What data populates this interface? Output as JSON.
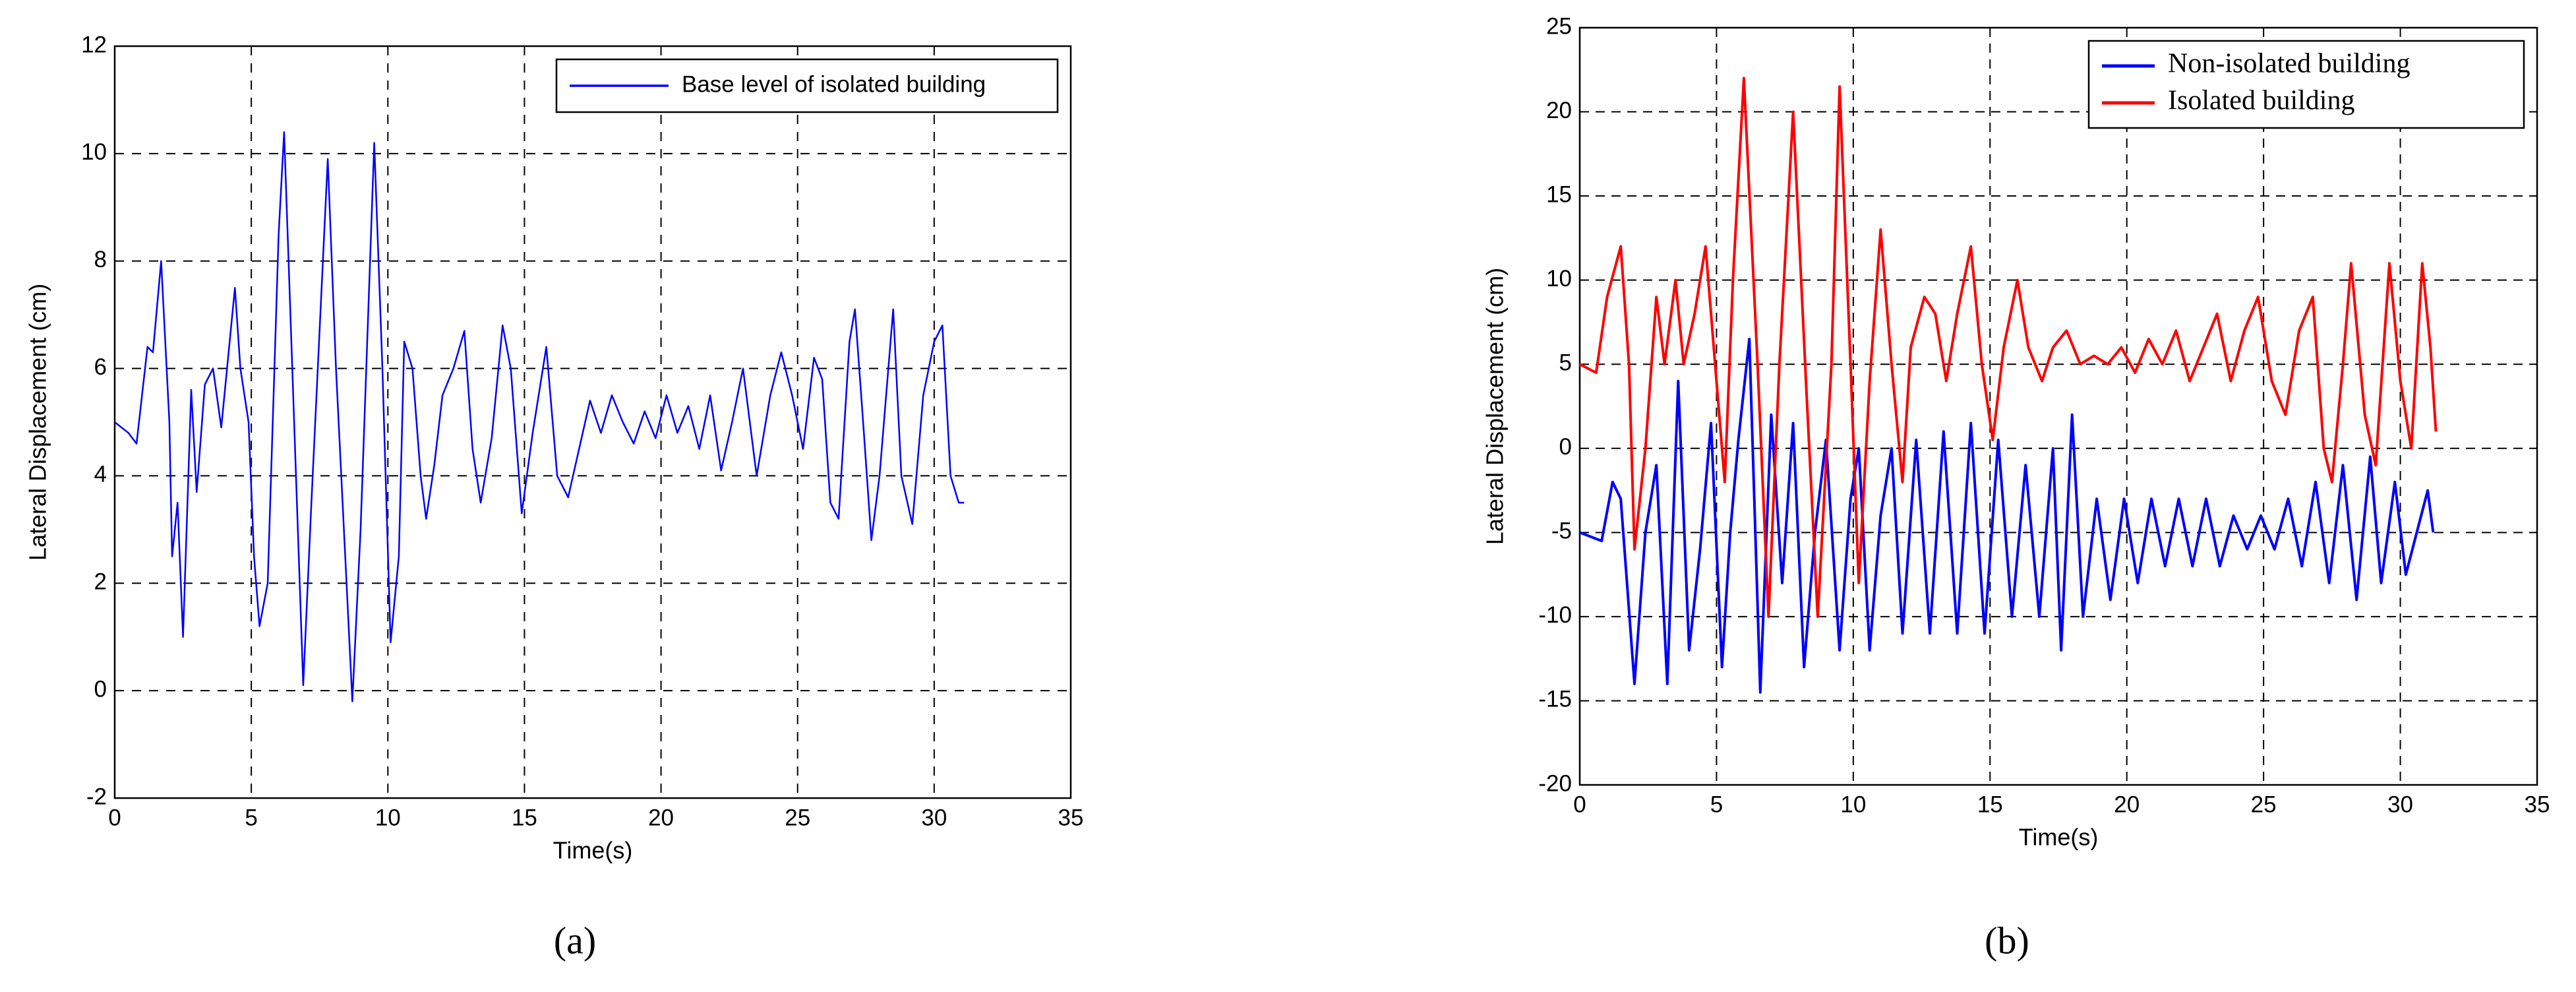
{
  "chart_data": [
    {
      "type": "line",
      "panel_label": "(a)",
      "xlabel": "Time(s)",
      "ylabel": "Lateral Displacement (cm)",
      "xlim": [
        0,
        35
      ],
      "xticks": [
        0,
        5,
        10,
        15,
        20,
        25,
        30,
        35
      ],
      "ylim": [
        -2,
        12
      ],
      "yticks": [
        -2,
        0,
        2,
        4,
        6,
        8,
        10,
        12
      ],
      "grid": true,
      "legend": "upper right",
      "series": [
        {
          "name": "Base level of isolated building",
          "color": "#0000ff",
          "x": [
            0,
            0.5,
            0.8,
            1.0,
            1.2,
            1.4,
            1.7,
            2.0,
            2.1,
            2.3,
            2.5,
            2.8,
            3.0,
            3.3,
            3.6,
            3.9,
            4.4,
            4.6,
            4.9,
            5.1,
            5.3,
            5.6,
            6.0,
            6.2,
            6.5,
            6.9,
            7.2,
            7.8,
            8.1,
            8.7,
            9.0,
            9.5,
            9.8,
            10.1,
            10.4,
            10.6,
            10.9,
            11.2,
            11.4,
            11.7,
            12.0,
            12.4,
            12.8,
            13.1,
            13.4,
            13.8,
            14.2,
            14.5,
            14.9,
            15.3,
            15.8,
            16.2,
            16.6,
            17.0,
            17.4,
            17.8,
            18.2,
            18.6,
            19.0,
            19.4,
            19.8,
            20.2,
            20.6,
            21.0,
            21.4,
            21.8,
            22.2,
            22.6,
            23.0,
            23.5,
            24.0,
            24.4,
            24.8,
            25.2,
            25.6,
            25.9,
            26.2,
            26.5,
            26.9,
            27.1,
            27.4,
            27.7,
            28.0,
            28.5,
            28.8,
            29.2,
            29.6,
            30.0,
            30.3,
            30.6,
            30.9,
            31.1
          ],
          "values": [
            5,
            4.8,
            4.6,
            5.5,
            6.4,
            6.3,
            8.0,
            5,
            2.5,
            3.5,
            1.0,
            5.6,
            3.7,
            5.7,
            6.0,
            4.9,
            7.5,
            6.0,
            5.0,
            2.5,
            1.2,
            2.0,
            8.5,
            10.4,
            6,
            0.1,
            3.5,
            9.9,
            6,
            -0.2,
            3,
            10.2,
            6,
            0.9,
            2.5,
            6.5,
            6.0,
            4,
            3.2,
            4.2,
            5.5,
            6.0,
            6.7,
            4.5,
            3.5,
            4.7,
            6.8,
            6.0,
            3.3,
            4.8,
            6.4,
            4.0,
            3.6,
            4.5,
            5.4,
            4.8,
            5.5,
            5.0,
            4.6,
            5.2,
            4.7,
            5.5,
            4.8,
            5.3,
            4.5,
            5.5,
            4.1,
            5.0,
            6.0,
            4.0,
            5.5,
            6.3,
            5.5,
            4.5,
            6.2,
            5.8,
            3.5,
            3.2,
            6.5,
            7.1,
            5,
            2.8,
            4,
            7.1,
            4,
            3.1,
            5.5,
            6.5,
            6.8,
            4,
            3.5,
            3.5
          ]
        }
      ]
    },
    {
      "type": "line",
      "panel_label": "(b)",
      "xlabel": "Time(s)",
      "ylabel": "Lateral Displacement (cm)",
      "xlim": [
        0,
        35
      ],
      "xticks": [
        0,
        5,
        10,
        15,
        20,
        25,
        30,
        35
      ],
      "ylim": [
        -20,
        25
      ],
      "yticks": [
        -20,
        -15,
        -10,
        -5,
        0,
        5,
        10,
        15,
        20,
        25
      ],
      "grid": true,
      "legend": "upper right",
      "series": [
        {
          "name": "Non-isolated building",
          "color": "#0000ff",
          "x": [
            0,
            0.8,
            1.2,
            1.5,
            2.0,
            2.4,
            2.8,
            3.2,
            3.6,
            4.0,
            4.4,
            4.8,
            5.2,
            5.5,
            5.8,
            6.2,
            6.6,
            7.0,
            7.4,
            7.8,
            8.2,
            8.6,
            9.0,
            9.5,
            9.9,
            10.2,
            10.6,
            11.0,
            11.4,
            11.8,
            12.3,
            12.8,
            13.3,
            13.8,
            14.3,
            14.8,
            15.3,
            15.8,
            16.3,
            16.8,
            17.3,
            17.6,
            18.0,
            18.4,
            18.9,
            19.4,
            19.9,
            20.4,
            20.9,
            21.4,
            21.9,
            22.4,
            22.9,
            23.4,
            23.9,
            24.4,
            24.9,
            25.4,
            25.9,
            26.4,
            26.9,
            27.4,
            27.9,
            28.4,
            28.9,
            29.3,
            29.8,
            30.2,
            30.6,
            31.0,
            31.2
          ],
          "values": [
            -5,
            -5.5,
            -2,
            -3,
            -14,
            -5,
            -1,
            -14,
            4,
            -12,
            -6,
            1.5,
            -13,
            -5,
            0.5,
            6.5,
            -14.5,
            2,
            -8,
            1.5,
            -13,
            -5,
            0.5,
            -12,
            -3,
            0,
            -12,
            -4,
            0,
            -11,
            0.5,
            -11,
            1,
            -11,
            1.5,
            -11,
            0.5,
            -10,
            -1,
            -10,
            0,
            -12,
            2,
            -10,
            -3,
            -9,
            -3,
            -8,
            -3,
            -7,
            -3,
            -7,
            -3,
            -7,
            -4,
            -6,
            -4,
            -6,
            -3,
            -7,
            -2,
            -8,
            -1,
            -9,
            -0.5,
            -8,
            -2,
            -7.5,
            -5,
            -2.5,
            -5
          ]
        },
        {
          "name": "Isolated building",
          "color": "#ff0000",
          "x": [
            0,
            0.6,
            1.0,
            1.5,
            1.8,
            2.0,
            2.4,
            2.8,
            3.1,
            3.5,
            3.8,
            4.2,
            4.6,
            5.0,
            5.3,
            5.6,
            6.0,
            6.5,
            6.9,
            7.3,
            7.8,
            8.3,
            8.7,
            9.2,
            9.5,
            9.9,
            10.2,
            10.6,
            11.0,
            11.4,
            11.8,
            12.1,
            12.6,
            13.0,
            13.4,
            13.8,
            14.3,
            14.7,
            15.1,
            15.5,
            16.0,
            16.4,
            16.9,
            17.3,
            17.8,
            18.3,
            18.8,
            19.3,
            19.8,
            20.3,
            20.8,
            21.3,
            21.8,
            22.3,
            22.8,
            23.3,
            23.8,
            24.3,
            24.8,
            25.3,
            25.8,
            26.3,
            26.8,
            27.2,
            27.5,
            27.9,
            28.2,
            28.7,
            29.1,
            29.6,
            30.0,
            30.4,
            30.8,
            31.1,
            31.3
          ],
          "values": [
            5,
            4.5,
            9,
            12,
            5,
            -6,
            0,
            9,
            5,
            10,
            5,
            8,
            12,
            4,
            -2,
            10,
            22,
            5,
            -10,
            5,
            20,
            3,
            -10,
            5,
            21.5,
            5,
            -8,
            4,
            13,
            5,
            -2,
            6,
            9,
            8,
            4,
            8,
            12,
            5,
            0.5,
            6,
            10,
            6,
            4,
            6,
            7,
            5,
            5.5,
            5,
            6,
            4.5,
            6.5,
            5,
            7,
            4,
            6,
            8,
            4,
            7,
            9,
            4,
            2,
            7,
            9,
            0,
            -2,
            5,
            11,
            2,
            -1,
            11,
            4,
            0,
            11,
            6,
            1
          ]
        }
      ]
    }
  ]
}
